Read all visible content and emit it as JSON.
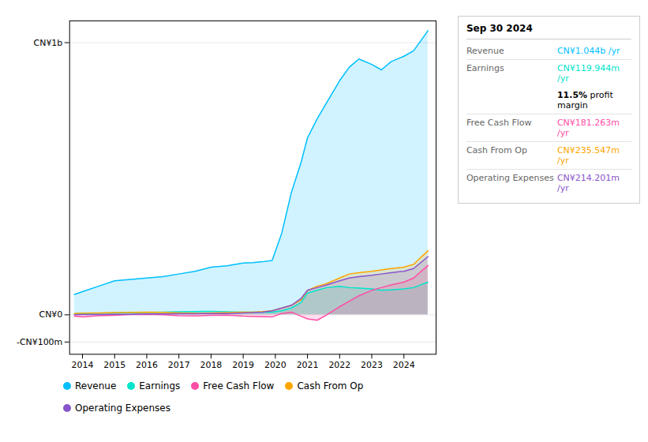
{
  "chart_data": {
    "type": "area",
    "x": [
      2013.75,
      2014.0,
      2014.5,
      2015.0,
      2015.5,
      2016.0,
      2016.5,
      2017.0,
      2017.5,
      2018.0,
      2018.5,
      2019.0,
      2019.3,
      2019.6,
      2019.9,
      2020.2,
      2020.5,
      2020.8,
      2021.0,
      2021.3,
      2021.6,
      2022.0,
      2022.3,
      2022.6,
      2023.0,
      2023.3,
      2023.6,
      2024.0,
      2024.3,
      2024.75
    ],
    "series": [
      {
        "name": "Revenue",
        "color": "#00bfff",
        "values": [
          0.075,
          0.085,
          0.105,
          0.125,
          0.13,
          0.135,
          0.14,
          0.15,
          0.16,
          0.175,
          0.18,
          0.19,
          0.192,
          0.195,
          0.2,
          0.3,
          0.45,
          0.56,
          0.65,
          0.72,
          0.78,
          0.86,
          0.91,
          0.94,
          0.92,
          0.9,
          0.93,
          0.95,
          0.97,
          1.044
        ]
      },
      {
        "name": "Earnings",
        "color": "#00e5cc",
        "values": [
          0.004,
          0.005,
          0.006,
          0.007,
          0.008,
          0.009,
          0.01,
          0.011,
          0.012,
          0.013,
          0.011,
          0.01,
          0.01,
          0.01,
          0.01,
          0.015,
          0.025,
          0.045,
          0.08,
          0.09,
          0.1,
          0.105,
          0.1,
          0.098,
          0.095,
          0.09,
          0.092,
          0.095,
          0.1,
          0.1199
        ]
      },
      {
        "name": "Free Cash Flow",
        "color": "#ff4da6",
        "values": [
          -0.005,
          -0.008,
          -0.003,
          -0.002,
          0.001,
          0.002,
          0.0,
          -0.003,
          -0.004,
          -0.002,
          -0.001,
          -0.005,
          -0.006,
          -0.007,
          -0.008,
          0.005,
          0.01,
          -0.005,
          -0.015,
          -0.02,
          0.0,
          0.03,
          0.05,
          0.07,
          0.09,
          0.1,
          0.11,
          0.12,
          0.135,
          0.1813
        ]
      },
      {
        "name": "Cash From Op",
        "color": "#ffa500",
        "values": [
          0.005,
          0.006,
          0.007,
          0.008,
          0.009,
          0.01,
          0.009,
          0.007,
          0.006,
          0.007,
          0.008,
          0.01,
          0.01,
          0.012,
          0.015,
          0.025,
          0.035,
          0.055,
          0.09,
          0.105,
          0.115,
          0.135,
          0.15,
          0.155,
          0.16,
          0.165,
          0.17,
          0.175,
          0.185,
          0.2355
        ]
      },
      {
        "name": "Operating Expenses",
        "color": "#8855cc",
        "values": [
          0.0,
          0.001,
          0.001,
          0.002,
          0.002,
          0.003,
          0.003,
          0.004,
          0.004,
          0.005,
          0.005,
          0.007,
          0.008,
          0.01,
          0.015,
          0.025,
          0.035,
          0.06,
          0.09,
          0.1,
          0.11,
          0.125,
          0.135,
          0.14,
          0.145,
          0.15,
          0.155,
          0.16,
          0.17,
          0.2142
        ]
      }
    ],
    "xlim": [
      2013.6,
      2025.0
    ],
    "xticks": [
      2014,
      2015,
      2016,
      2017,
      2018,
      2019,
      2020,
      2021,
      2022,
      2023,
      2024
    ],
    "ylim": [
      -0.145,
      1.08
    ],
    "yticks": [
      {
        "value": -0.1,
        "label": "-CN¥100m"
      },
      {
        "value": 0.0,
        "label": "CN¥0"
      },
      {
        "value": 1.0,
        "label": "CN¥1b"
      }
    ],
    "grid": true,
    "legend": "bottom",
    "annotations": {
      "title": "Sep 30 2024",
      "rows": [
        {
          "label": "Revenue",
          "value": "CN¥1.044b /yr",
          "color": "#00bfff",
          "separator": true
        },
        {
          "label": "Earnings",
          "value": "CN¥119.944m /yr",
          "color": "#00e5cc",
          "separator": false
        },
        {
          "value": "11.5% profit margin",
          "separator": true
        },
        {
          "label": "Free Cash Flow",
          "value": "CN¥181.263m /yr",
          "color": "#ff4da6",
          "separator": true
        },
        {
          "label": "Cash From Op",
          "value": "CN¥235.547m /yr",
          "color": "#ffa500",
          "separator": true
        },
        {
          "label": "Operating Expenses",
          "value": "CN¥214.201m /yr",
          "color": "#8855cc",
          "separator": false
        }
      ]
    }
  }
}
